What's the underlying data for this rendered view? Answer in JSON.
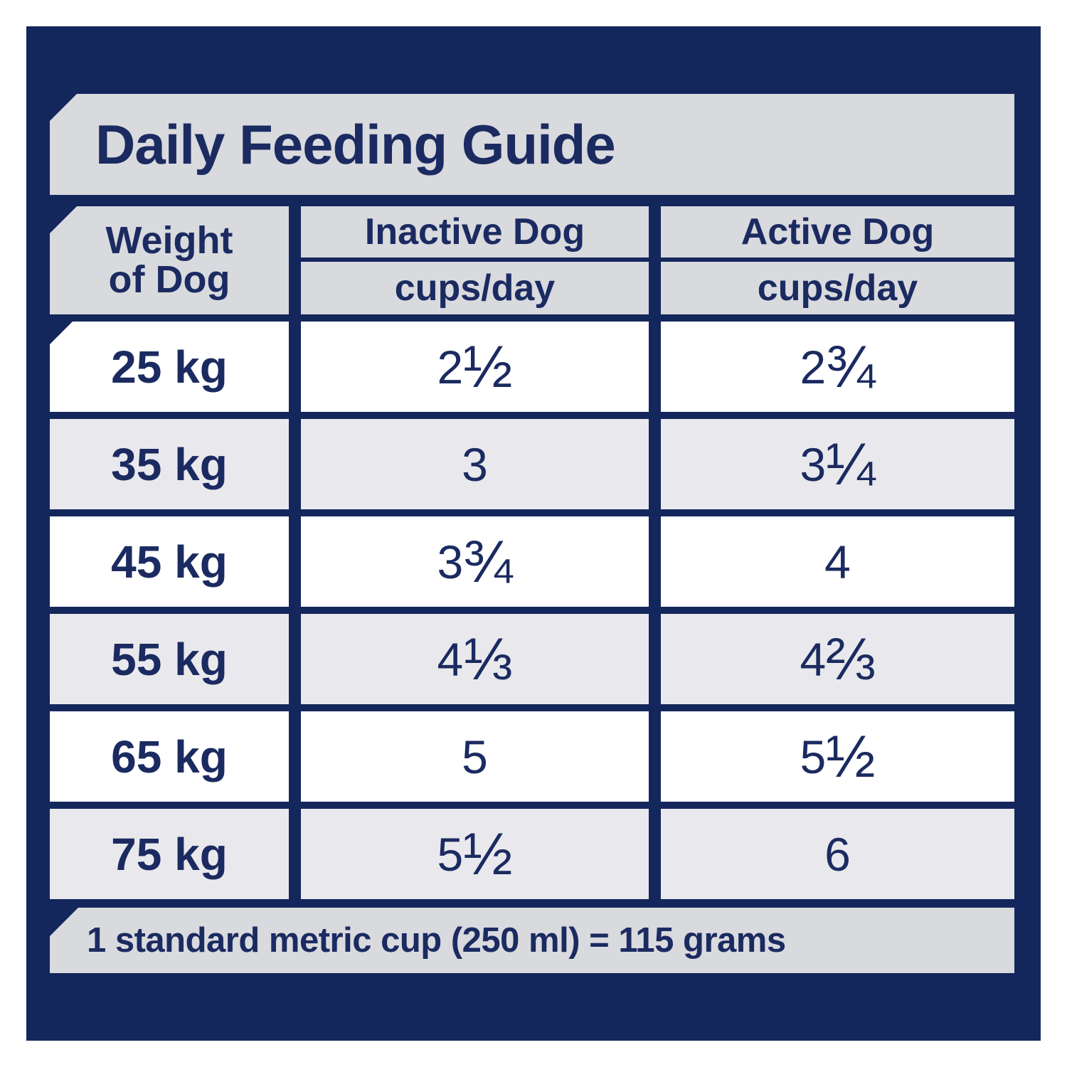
{
  "title": "Daily Feeding Guide",
  "table": {
    "weight_header": {
      "line1": "Weight",
      "line2": "of Dog"
    },
    "columns": [
      {
        "label": "Inactive Dog",
        "unit": "cups/day"
      },
      {
        "label": "Active Dog",
        "unit": "cups/day"
      }
    ],
    "rows": [
      {
        "weight": "25 kg",
        "inactive": "2 ½",
        "active": "2 ¾"
      },
      {
        "weight": "35 kg",
        "inactive": "3",
        "active": "3 ¼"
      },
      {
        "weight": "45 kg",
        "inactive": "3 ¾",
        "active": "4"
      },
      {
        "weight": "55 kg",
        "inactive": "4 ⅓",
        "active": "4 ⅔"
      },
      {
        "weight": "65 kg",
        "inactive": "5",
        "active": "5 ½"
      },
      {
        "weight": "75 kg",
        "inactive": "5 ½",
        "active": "6"
      }
    ]
  },
  "footer": {
    "note": "1 standard metric cup (250 ml) = 115 grams"
  },
  "colors": {
    "navy_background": "#14275c",
    "text_navy": "#1b2b61",
    "header_gray": "#d9dade",
    "row_gray": "#e9e9ed",
    "row_white": "#ffffff"
  }
}
